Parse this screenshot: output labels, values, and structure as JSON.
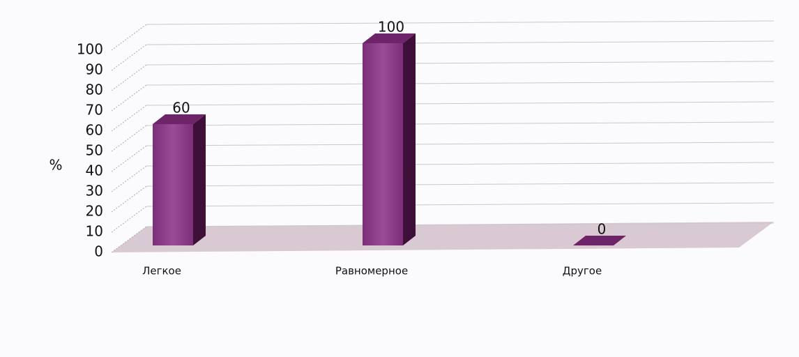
{
  "chart_data": {
    "type": "bar3d",
    "y_label": "%",
    "categories": [
      "Легкое",
      "Равномерное",
      "Другое"
    ],
    "values": [
      60,
      100,
      0
    ],
    "color": "#8e3f8a",
    "ylim": [
      0,
      100
    ],
    "yticks": [
      0,
      10,
      20,
      30,
      40,
      50,
      60,
      70,
      80,
      90,
      100
    ],
    "grid": true
  }
}
